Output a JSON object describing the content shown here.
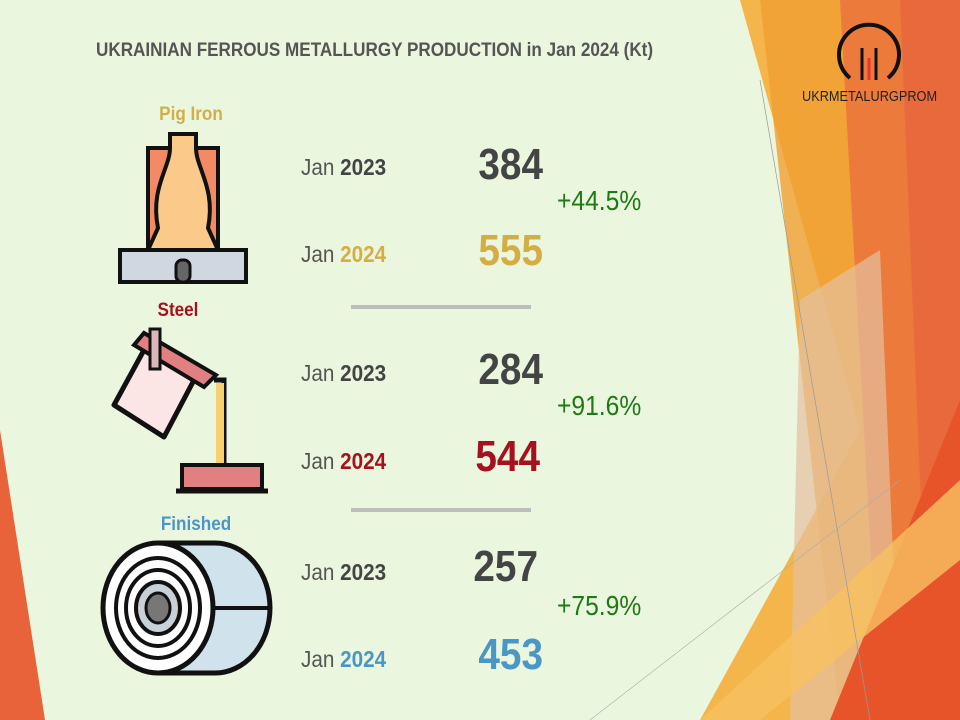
{
  "title": "UKRAINIAN FERROUS METALLURGY PRODUCTION in Jan 2024 (Kt)",
  "logo": {
    "text": "UKRMETALURGPROM"
  },
  "colors": {
    "pig_iron": "#d4ae45",
    "steel": "#a5111e",
    "finished": "#4a96c4",
    "change": "#1e7a12",
    "prev": "#444444"
  },
  "sections": [
    {
      "label": "Pig Iron",
      "icon": "blast-furnace-icon",
      "prev_month": "Jan",
      "prev_year": "2023",
      "prev_value": "384",
      "cur_month": "Jan",
      "cur_year": "2024",
      "cur_value": "555",
      "change": "+44.5%"
    },
    {
      "label": "Steel",
      "icon": "ladle-icon",
      "prev_month": "Jan",
      "prev_year": "2023",
      "prev_value": "284",
      "cur_month": "Jan",
      "cur_year": "2024",
      "cur_value": "544",
      "change": "+91.6%"
    },
    {
      "label": "Finished",
      "icon": "steel-coil-icon",
      "prev_month": "Jan",
      "prev_year": "2023",
      "prev_value": "257",
      "cur_month": "Jan",
      "cur_year": "2024",
      "cur_value": "453",
      "change": "+75.9%"
    }
  ]
}
